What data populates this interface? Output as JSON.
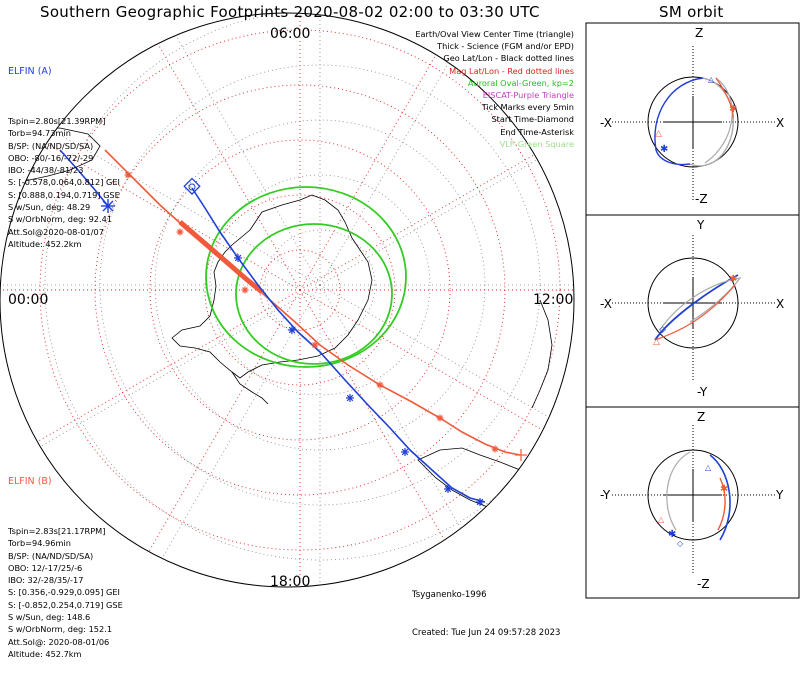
{
  "title": "Southern Geographic Footprints 2020-08-02 02:00 to 03:30 UTC",
  "orbit_title": "SM orbit",
  "time_labels": {
    "top": "06:00",
    "left": "00:00",
    "right": "12:00",
    "bottom": "18:00"
  },
  "elfin_a": {
    "header": "ELFIN (A)",
    "color": "#1f3fd6",
    "lines": [
      "Tspin=2.80s[21.39RPM]",
      "Torb=94.73min",
      "B/SP: (NA/ND/SD/SA)",
      "OBO: -80/-16/-72/-29",
      "IBO: -44/38/-81/23",
      "S: [-0.578,0.064,0.812] GEI",
      "S: [0.888,0.194,0.719] GSE",
      "S w/Sun, deg: 48.29",
      "S w/OrbNorm, deg: 92.41",
      "Att.Sol@2020-08-01/07",
      "Altitude: 452.2km"
    ]
  },
  "elfin_b": {
    "header": "ELFIN (B)",
    "color": "#f0593a",
    "lines": [
      "Tspin=2.83s[21.17RPM]",
      "Torb=94.96min",
      "B/SP: (NA/ND/SD/SA)",
      "OBO: 12/-17/25/-6",
      "IBO: 32/-28/35/-17",
      "S: [0.356,-0.929,0.095] GEI",
      "S: [-0.852,0.254,0.719] GSE",
      "S w/Sun, deg: 148.6",
      "S w/OrbNorm, deg: 152.1",
      "Att.Sol@: 2020-08-01/06",
      "Altitude: 452.7km"
    ]
  },
  "legend": [
    {
      "text": "Earth/Oval View Center Time (triangle)",
      "color": "#000000"
    },
    {
      "text": "Thick - Science (FGM and/or EPD)",
      "color": "#000000"
    },
    {
      "text": "Geo Lat/Lon - Black dotted lines",
      "color": "#000000"
    },
    {
      "text": "Mag Lat/Lon - Red dotted lines",
      "color": "#e0201c"
    },
    {
      "text": "Auroral Oval-Green, kp=2",
      "color": "#22c01c"
    },
    {
      "text": "EISCAT-Purple Triangle",
      "color": "#c040c0"
    },
    {
      "text": "Tick Marks every 5min",
      "color": "#000000"
    },
    {
      "text": "Start Time-Diamond",
      "color": "#000000"
    },
    {
      "text": "End Time-Asterisk",
      "color": "#000000"
    },
    {
      "text": "VLF-Green Square",
      "color": "#9de08a"
    }
  ],
  "footer": {
    "author": "Tsyganenko-1996",
    "created": "Created: Tue Jun 24 09:57:28 2023"
  },
  "orbit_panels": [
    {
      "top": "Z",
      "bottom": "-Z",
      "left": "-X",
      "right": "X"
    },
    {
      "top": "Y",
      "bottom": "-Y",
      "left": "-X",
      "right": "X"
    },
    {
      "top": "Z",
      "bottom": "-Z",
      "left": "-Y",
      "right": "Y"
    }
  ],
  "colors": {
    "elfin_a": "#1f3fd6",
    "elfin_b": "#f0593a",
    "oval": "#33cc22",
    "mag_grid": "#e0201c"
  }
}
